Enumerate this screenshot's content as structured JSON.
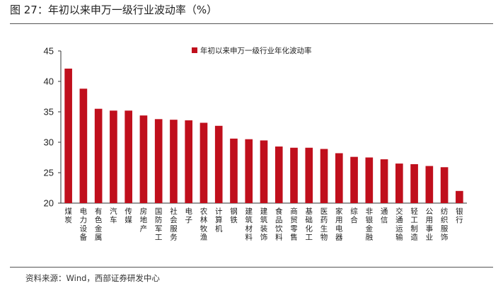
{
  "figure": {
    "title": "图 27：年初以来申万一级行业波动率（%）",
    "source": "资料来源：Wind，西部证券研发中心"
  },
  "colors": {
    "bar": "#C00F1C",
    "axis": "#333333"
  },
  "chart_data": {
    "type": "bar",
    "title": "",
    "xlabel": "",
    "ylabel": "",
    "ylim": [
      20,
      45
    ],
    "yticks": [
      20,
      25,
      30,
      35,
      40,
      45
    ],
    "grid": false,
    "legend_position": "top",
    "categories": [
      "煤炭",
      "电力设备",
      "有色金属",
      "汽车",
      "传媒",
      "房地产",
      "国防军工",
      "社会服务",
      "电子",
      "农林牧渔",
      "计算机",
      "钢铁",
      "建筑材料",
      "建筑装饰",
      "食品饮料",
      "商贸零售",
      "基础化工",
      "医药生物",
      "家用电器",
      "综合",
      "非银金融",
      "通信",
      "交通运输",
      "轻工制造",
      "公用事业",
      "纺织服饰",
      "银行"
    ],
    "series": [
      {
        "name": "年初以来申万一级行业年化波动率",
        "values": [
          42.1,
          38.8,
          35.5,
          35.2,
          35.2,
          34.4,
          33.8,
          33.7,
          33.6,
          33.2,
          32.7,
          30.6,
          30.5,
          30.3,
          29.3,
          29.1,
          29.1,
          28.9,
          28.2,
          27.6,
          27.5,
          27.2,
          26.5,
          26.4,
          26.1,
          25.9,
          22.0
        ]
      }
    ]
  }
}
